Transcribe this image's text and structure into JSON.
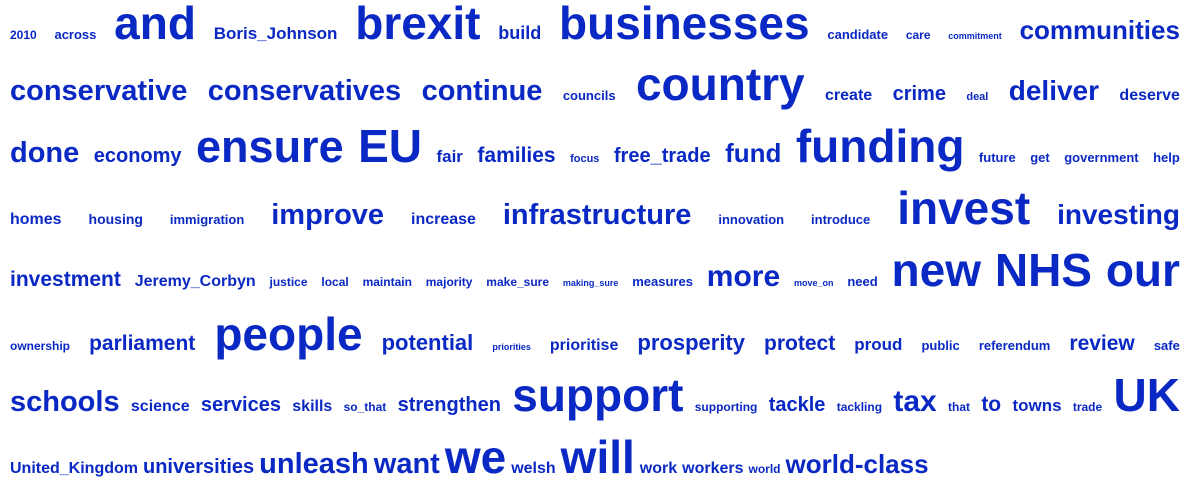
{
  "color": "#0a28c3",
  "rows": [
    [
      [
        "2010",
        12
      ],
      [
        "across",
        13
      ],
      [
        "and",
        46
      ],
      [
        "Boris_Johnson",
        17
      ],
      [
        "brexit",
        46
      ],
      [
        "build",
        18
      ],
      [
        "businesses",
        46
      ],
      [
        "candidate",
        13
      ],
      [
        "care",
        12
      ],
      [
        "commitment",
        9
      ],
      [
        "communities",
        26
      ]
    ],
    [
      [
        "conservative",
        29
      ],
      [
        "conservatives",
        29
      ],
      [
        "continue",
        29
      ],
      [
        "councils",
        13
      ],
      [
        "country",
        46
      ],
      [
        "create",
        16
      ],
      [
        "crime",
        20
      ],
      [
        "deal",
        11
      ],
      [
        "deliver",
        28
      ],
      [
        "deserve",
        16
      ]
    ],
    [
      [
        "done",
        29
      ],
      [
        "economy",
        20
      ],
      [
        "ensure",
        45
      ],
      [
        "EU",
        46
      ],
      [
        "fair",
        17
      ],
      [
        "families",
        21
      ],
      [
        "focus",
        11
      ],
      [
        "free_trade",
        20
      ],
      [
        "fund",
        26
      ],
      [
        "funding",
        46
      ],
      [
        "future",
        13
      ],
      [
        "get",
        13
      ],
      [
        "government",
        13
      ],
      [
        "help",
        13
      ]
    ],
    [
      [
        "homes",
        16
      ],
      [
        "housing",
        14
      ],
      [
        "immigration",
        13
      ],
      [
        "improve",
        29
      ],
      [
        "increase",
        16
      ],
      [
        "infrastructure",
        29
      ],
      [
        "innovation",
        13
      ],
      [
        "introduce",
        13
      ],
      [
        "invest",
        46
      ],
      [
        "investing",
        28
      ]
    ],
    [
      [
        "investment",
        21
      ],
      [
        "Jeremy_Corbyn",
        16
      ],
      [
        "justice",
        12
      ],
      [
        "local",
        12
      ],
      [
        "maintain",
        12
      ],
      [
        "majority",
        12
      ],
      [
        "make_sure",
        12
      ],
      [
        "making_sure",
        9
      ],
      [
        "measures",
        13
      ],
      [
        "more",
        30
      ],
      [
        "move_on",
        9
      ],
      [
        "need",
        13
      ],
      [
        "new",
        46
      ],
      [
        "NHS",
        46
      ],
      [
        "our",
        46
      ]
    ],
    [
      [
        "ownership",
        12
      ],
      [
        "parliament",
        21
      ],
      [
        "people",
        46
      ],
      [
        "potential",
        22
      ],
      [
        "priorities",
        9
      ],
      [
        "prioritise",
        16
      ],
      [
        "prosperity",
        22
      ],
      [
        "protect",
        21
      ],
      [
        "proud",
        17
      ],
      [
        "public",
        13
      ],
      [
        "referendum",
        13
      ],
      [
        "review",
        21
      ],
      [
        "safe",
        13
      ]
    ],
    [
      [
        "schools",
        29
      ],
      [
        "science",
        16
      ],
      [
        "services",
        20
      ],
      [
        "skills",
        16
      ],
      [
        "so_that",
        12
      ],
      [
        "strengthen",
        20
      ],
      [
        "support",
        46
      ],
      [
        "supporting",
        12
      ],
      [
        "tackle",
        20
      ],
      [
        "tackling",
        12
      ],
      [
        "tax",
        30
      ],
      [
        "that",
        12
      ],
      [
        "to",
        21
      ],
      [
        "towns",
        17
      ],
      [
        "trade",
        12
      ],
      [
        "UK",
        46
      ]
    ],
    [
      [
        "United_Kingdom",
        16
      ],
      [
        "universities",
        20
      ],
      [
        "unleash",
        29
      ],
      [
        "want",
        29
      ],
      [
        "we",
        46
      ],
      [
        "welsh",
        16
      ],
      [
        "will",
        46
      ],
      [
        "work",
        16
      ],
      [
        "workers",
        16
      ],
      [
        "world",
        12
      ],
      [
        "world-class",
        26
      ]
    ]
  ]
}
